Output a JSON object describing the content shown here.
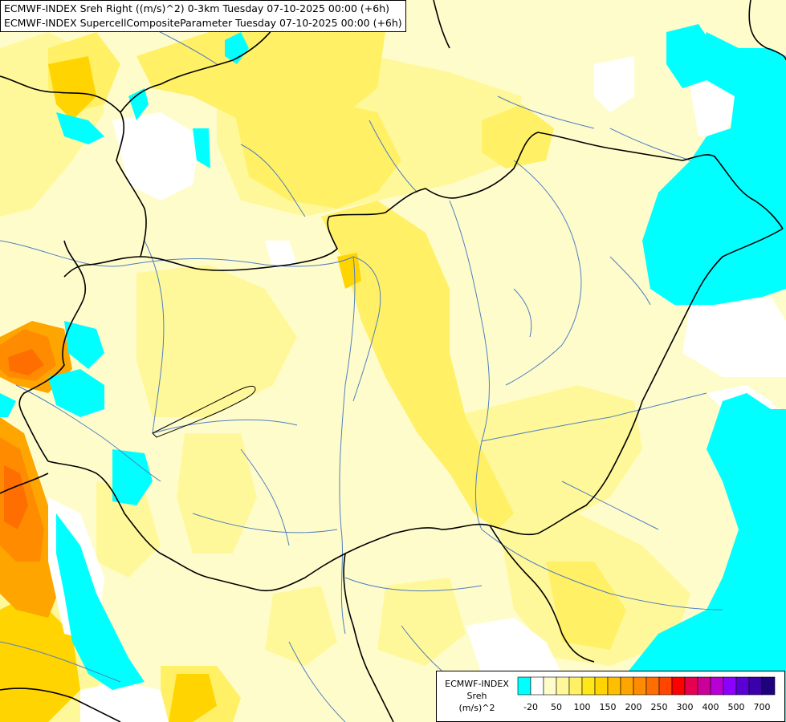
{
  "title_lines": [
    "ECMWF-INDEX Sreh Right ((m/s)^2) 0-3km Tuesday 07-10-2025 00:00 (+6h)",
    "ECMWF-INDEX SupercellCompositeParameter Tuesday 07-10-2025 00:00 (+6h)"
  ],
  "legend": {
    "source": "ECMWF-INDEX",
    "variable": "Sreh",
    "units": "(m/s)^2",
    "tick_labels": [
      "-20",
      "50",
      "100",
      "150",
      "200",
      "250",
      "300",
      "400",
      "500",
      "700"
    ],
    "colors": [
      "#00ffff",
      "#ffffff",
      "#fffccc",
      "#fff89a",
      "#fff066",
      "#ffe81a",
      "#ffd400",
      "#ffbf00",
      "#ffa500",
      "#ff8c00",
      "#ff6e00",
      "#ff4500",
      "#ff0000",
      "#e60050",
      "#cc0099",
      "#b800d4",
      "#8c00ff",
      "#5a00d6",
      "#3a00aa",
      "#1f007f"
    ]
  },
  "palette": {
    "cyan": "#00ffff",
    "white": "#ffffff",
    "pale": "#fffccc",
    "light_yellow": "#fff89a",
    "yellow": "#fff066",
    "gold": "#ffe81a",
    "orange": "#ff8c00",
    "dark_orange": "#ff6e00",
    "border": "#000000",
    "river": "#4f7fbf"
  }
}
